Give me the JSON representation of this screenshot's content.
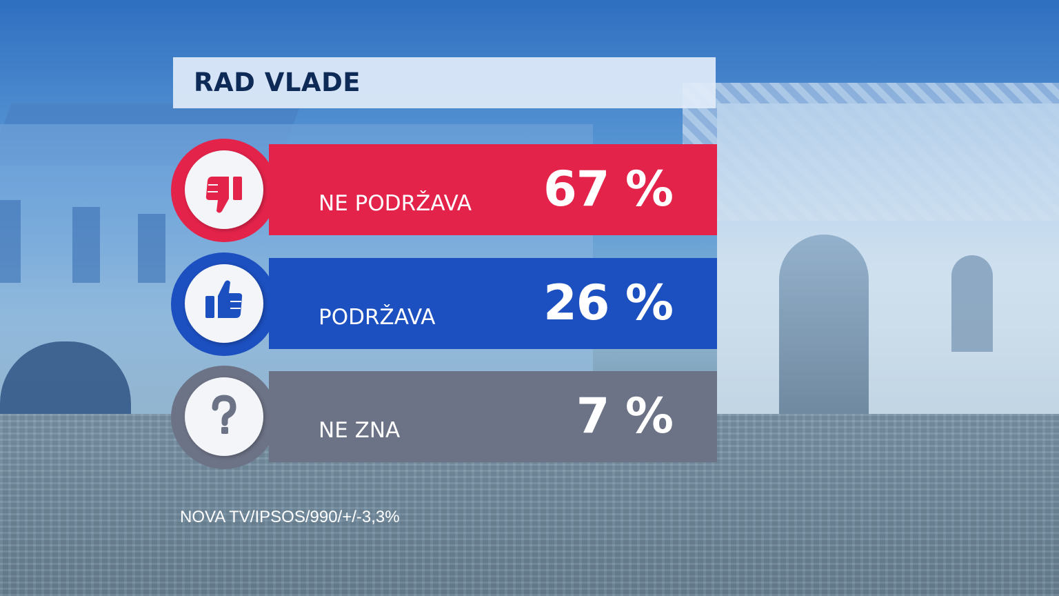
{
  "title": "RAD VLADE",
  "chart_data": {
    "type": "bar",
    "title": "RAD VLADE",
    "categories": [
      "NE PODRŽAVA",
      "PODRŽAVA",
      "NE ZNA"
    ],
    "values": [
      67,
      26,
      7
    ],
    "value_labels": [
      "67 %",
      "26 %",
      "7 %"
    ],
    "unit": "%",
    "colors": [
      "#e4234b",
      "#1c4fbf",
      "#6d7386"
    ],
    "icons": [
      "thumbs-down-icon",
      "thumbs-up-icon",
      "question-mark-icon"
    ]
  },
  "rows": [
    {
      "label": "NE PODRŽAVA",
      "value": "67 %",
      "color": "#e4234b",
      "icon": "thumbs-down-icon"
    },
    {
      "label": "PODRŽAVA",
      "value": "26 %",
      "color": "#1c4fbf",
      "icon": "thumbs-up-icon"
    },
    {
      "label": "NE ZNA",
      "value": "7 %",
      "color": "#6d7386",
      "icon": "question-mark-icon"
    }
  ],
  "source": "NOVA TV/IPSOS/990/+/-3,3%"
}
